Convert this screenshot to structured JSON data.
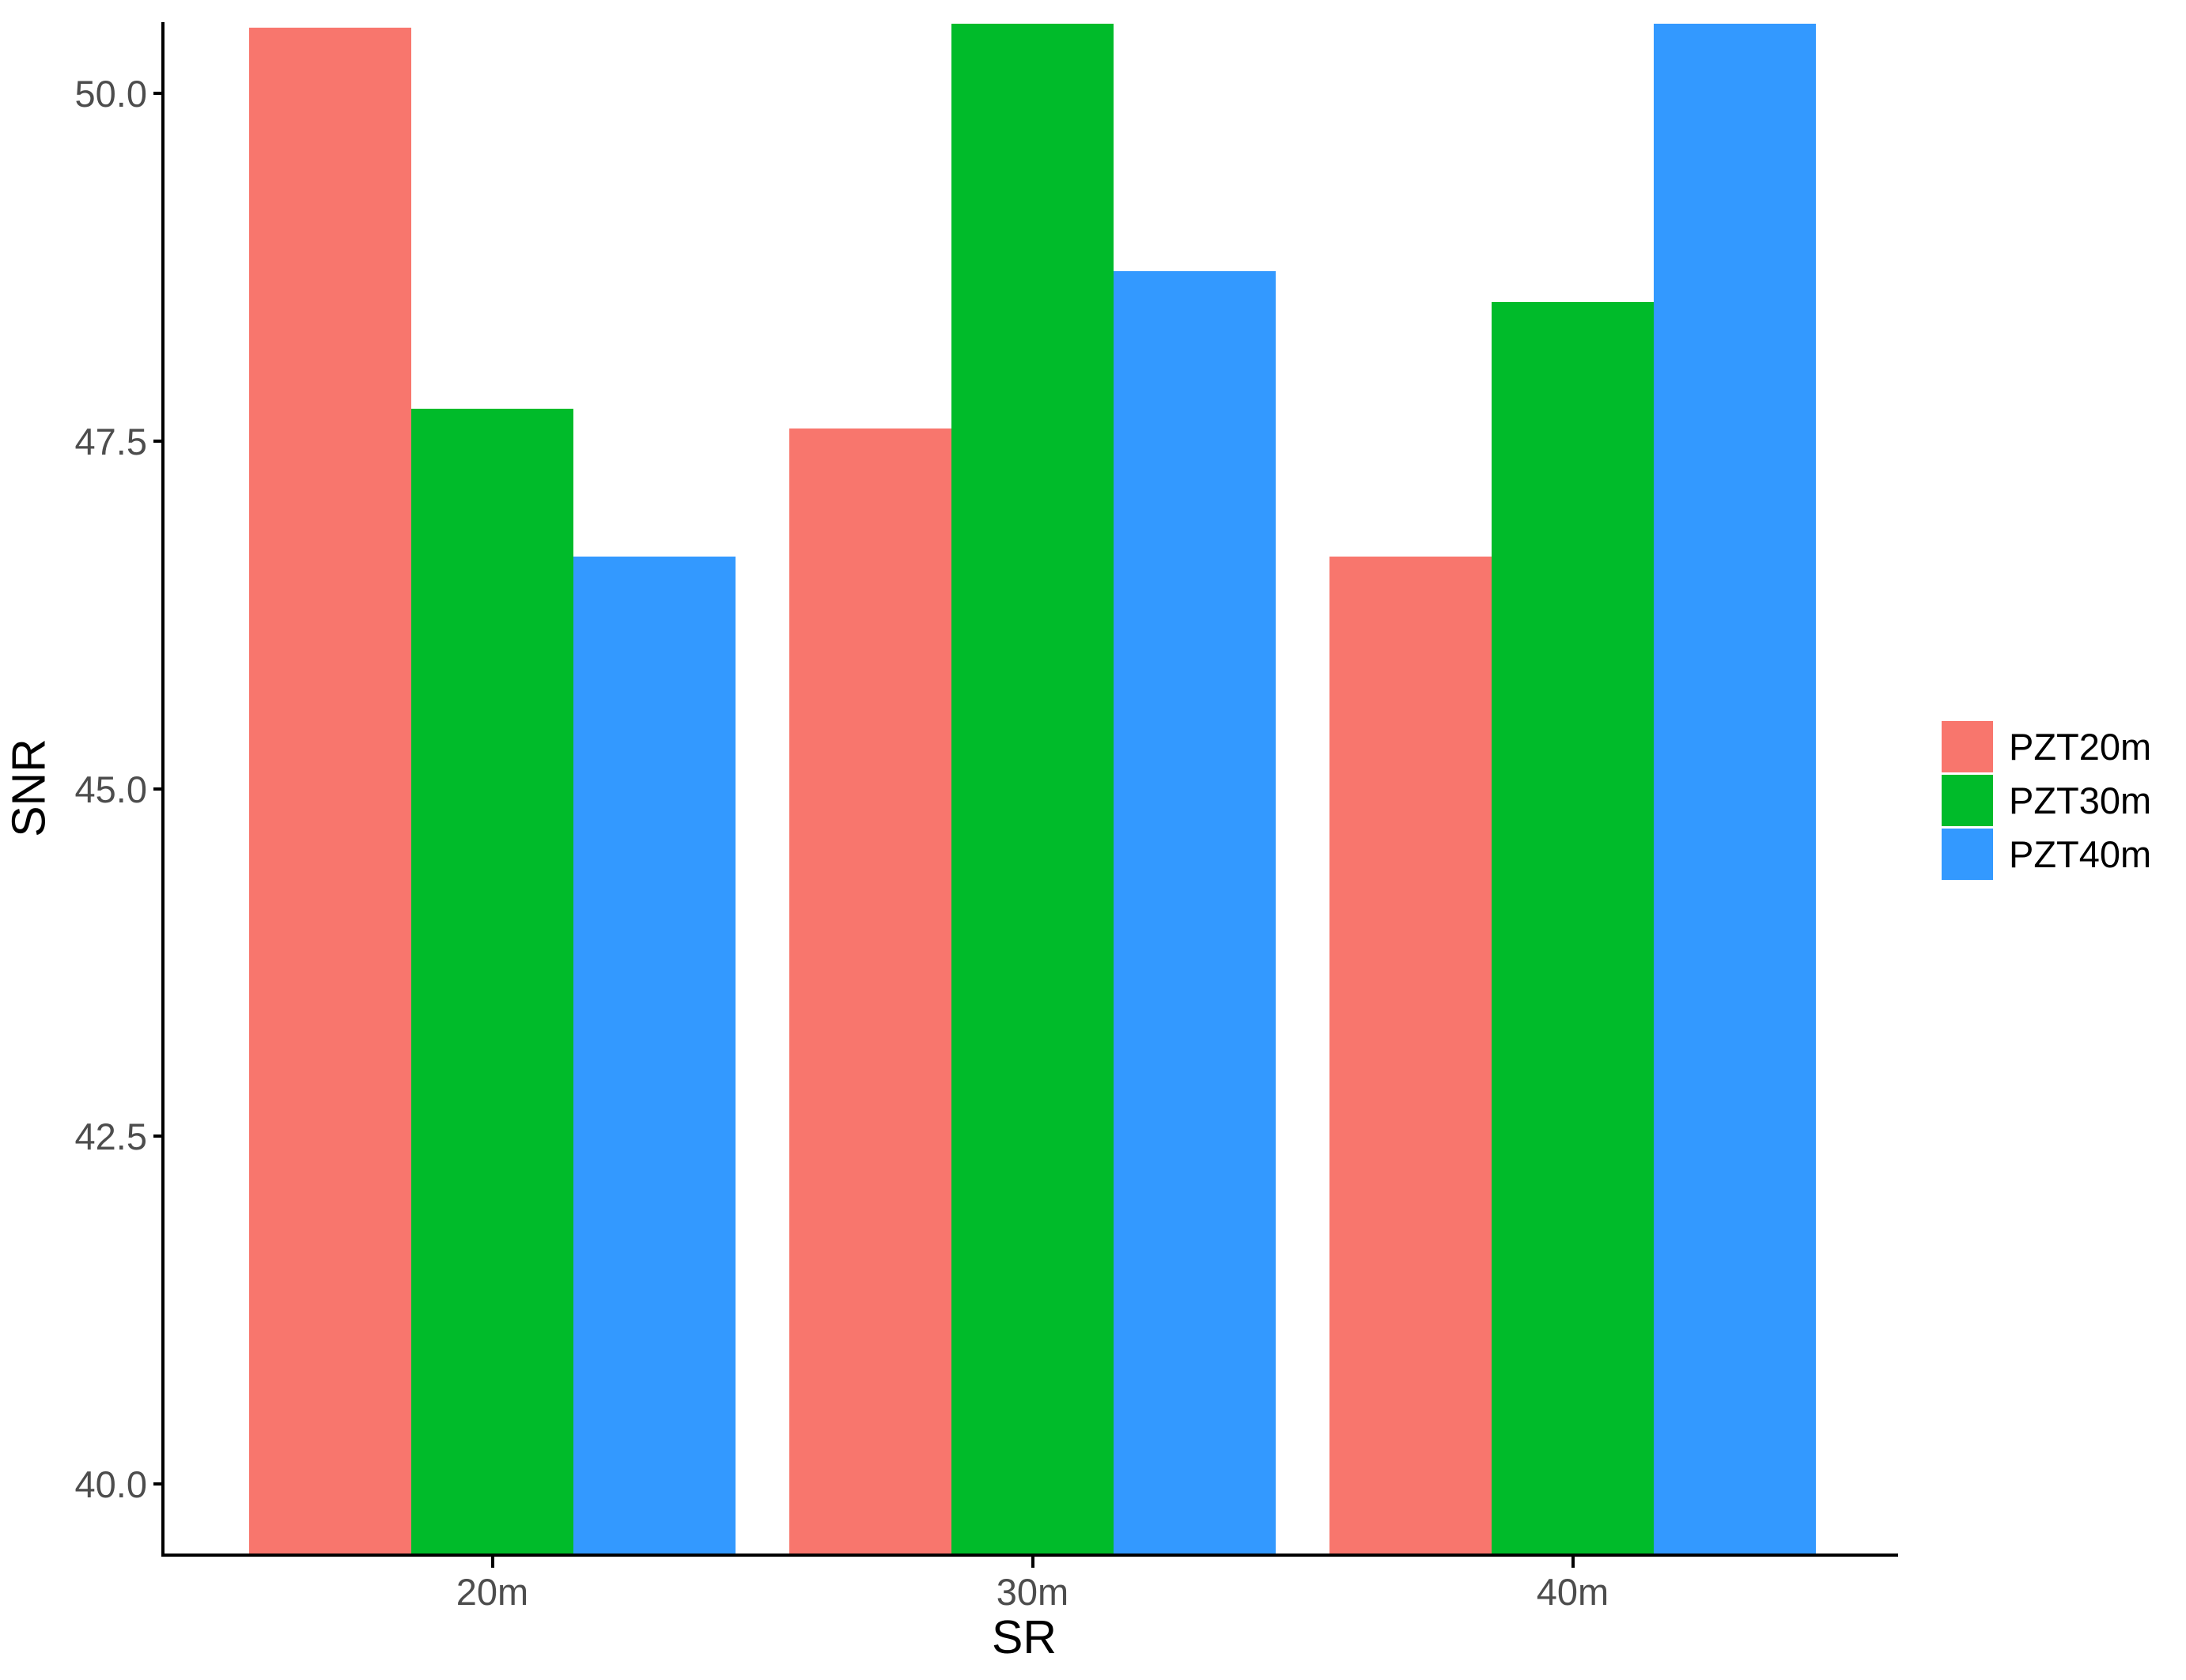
{
  "chart_data": {
    "type": "bar",
    "bar_mode": "dodge",
    "title": "",
    "xlabel": "SR",
    "ylabel": "SNR",
    "categories": [
      "20m",
      "30m",
      "40m"
    ],
    "series": [
      {
        "name": "PZT20m",
        "color": "#F8766D",
        "values": [
          50.47,
          47.59,
          46.67
        ]
      },
      {
        "name": "PZT30m",
        "color": "#00BB2A",
        "values": [
          47.73,
          50.5,
          48.5
        ]
      },
      {
        "name": "PZT40m",
        "color": "#3399FF",
        "values": [
          46.67,
          48.72,
          50.5
        ]
      }
    ],
    "ylim": [
      39.5,
      50.5
    ],
    "yticks": [
      40.0,
      42.5,
      45.0,
      47.5,
      50.0
    ],
    "ytick_labels": [
      "40.0",
      "42.5",
      "45.0",
      "47.5",
      "50.0"
    ],
    "grid": false,
    "legend_position": "right",
    "axis_text_color": "#4d4d4d",
    "axis_line_color": "#000000",
    "background_color": "#ffffff"
  }
}
